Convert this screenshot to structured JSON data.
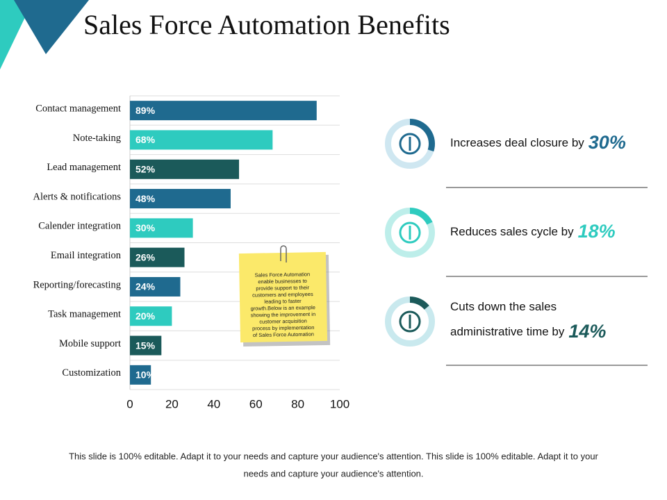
{
  "chart_data": {
    "type": "bar",
    "orientation": "horizontal",
    "title": "Sales Force Automation Benefits",
    "categories": [
      "Contact management",
      "Note-taking",
      "Lead management",
      "Alerts & notifications",
      "Calender integration",
      "Email integration",
      "Reporting/forecasting",
      "Task management",
      "Mobile support",
      "Customization"
    ],
    "values": [
      89,
      68,
      52,
      48,
      30,
      26,
      24,
      20,
      15,
      10
    ],
    "value_labels": [
      "89%",
      "68%",
      "52%",
      "48%",
      "30%",
      "26%",
      "24%",
      "20%",
      "15%",
      "10%"
    ],
    "colors": [
      "#1f6a8f",
      "#2ecbbf",
      "#1b5a5a",
      "#1f6a8f",
      "#2ecbbf",
      "#1b5a5a",
      "#1f6a8f",
      "#2ecbbf",
      "#1b5a5a",
      "#1f6a8f"
    ],
    "xlim": [
      0,
      100
    ],
    "xticks": [
      0,
      20,
      40,
      60,
      80,
      100
    ],
    "grid": false,
    "note": [
      "Sales Force Automation",
      "enable businesses to",
      "provide support to their",
      "customers and employees",
      "leading to faster",
      "growth.Below is an example",
      "showing the improvement in",
      "customer acquisition",
      "process by implementation",
      "of  Sales Force Automation"
    ]
  },
  "stats": [
    {
      "lines": [
        "Increases deal closure by"
      ],
      "value": 30,
      "value_label": "30%",
      "color": "#1f6a8f",
      "ring": "#cfe7f1"
    },
    {
      "lines": [
        "Reduces sales cycle by"
      ],
      "value": 18,
      "value_label": "18%",
      "color": "#2ecbbf",
      "ring": "#bdeeea"
    },
    {
      "lines": [
        "Cuts down the sales",
        "administrative time by"
      ],
      "value": 14,
      "value_label": "14%",
      "color": "#1b5a5a",
      "ring": "#c9e9ee"
    }
  ],
  "footer": [
    "This slide is 100% editable. Adapt it to your needs and capture your audience's attention. This slide is 100% editable. Adapt it to your",
    "needs and capture your audience's attention."
  ]
}
